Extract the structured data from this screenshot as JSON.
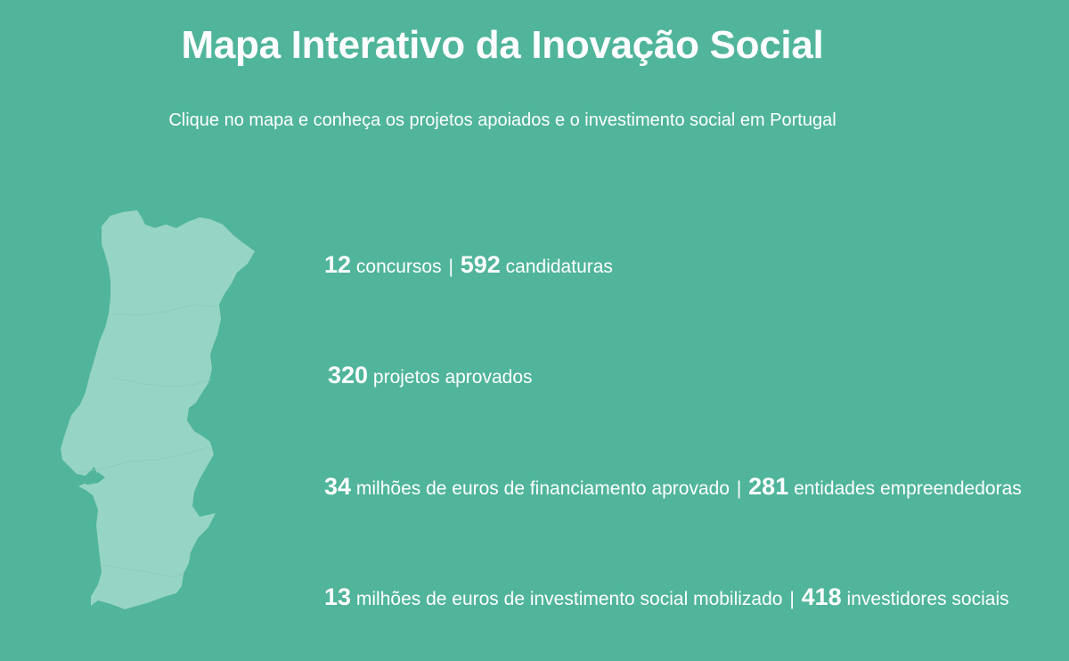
{
  "header": {
    "title": "Mapa Interativo da Inovação Social",
    "subtitle": "Clique no mapa e conheça os projetos apoiados e o investimento social em Portugal"
  },
  "map": {
    "fill_color": "#96d4c3",
    "background_color": "#50b59a"
  },
  "stats": [
    {
      "num_a": "12",
      "text_a": "concursos",
      "sep": "|",
      "num_b": "592",
      "text_b": "candidaturas"
    },
    {
      "num_a": "320",
      "text_a": "projetos aprovados"
    },
    {
      "num_a": "34",
      "text_a": "milhões de euros de financiamento aprovado",
      "sep": "|",
      "num_b": "281",
      "text_b": "entidades empreendedoras"
    },
    {
      "num_a": "13",
      "text_a": "milhões de euros de investimento social mobilizado",
      "sep": "|",
      "num_b": "418",
      "text_b": "investidores sociais"
    }
  ]
}
